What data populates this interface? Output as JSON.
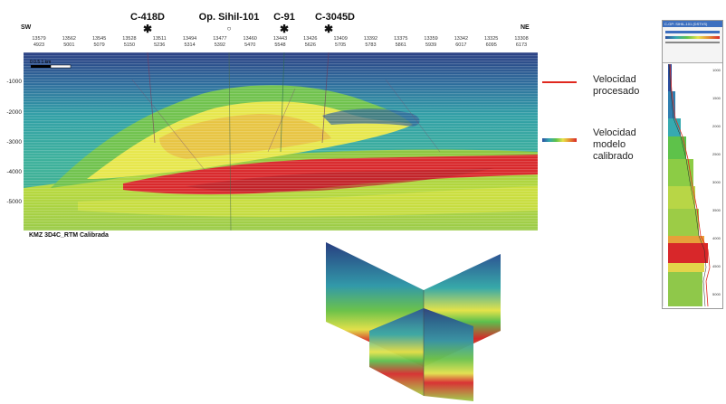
{
  "section": {
    "direction_left": "SW",
    "direction_right": "NE",
    "wells": [
      {
        "name": "C-418D",
        "marker": "✱"
      },
      {
        "name": "Op. Sihil-101",
        "marker": "○"
      },
      {
        "name": "C-91",
        "marker": "✱"
      },
      {
        "name": "C-3045D",
        "marker": "✱"
      }
    ],
    "traces_top": [
      "13579",
      "13562",
      "13545",
      "13528",
      "13511",
      "13494",
      "13477",
      "13460",
      "13443",
      "13426",
      "13409",
      "13392",
      "13375",
      "13359",
      "13342",
      "13325",
      "13308"
    ],
    "traces_bottom": [
      "4923",
      "5001",
      "5079",
      "5150",
      "5236",
      "5314",
      "5392",
      "5470",
      "5548",
      "5626",
      "5705",
      "5783",
      "5861",
      "5939",
      "6017",
      "6095",
      "6173"
    ],
    "depth_labels": [
      "-1000",
      "-2000",
      "-3000",
      "-4000",
      "-5000"
    ],
    "scale_label": "0   0.5   1 km",
    "caption": "KMZ 3D4C_RTM Calibrada"
  },
  "legend": {
    "processed_label": "Velocidad\nprocesado",
    "model_label": "Velocidad\nmodelo\ncalibrado",
    "processed_color": "#e0281e"
  },
  "log_panel": {
    "header_title": "C-GP: SIHIL-101 (DSTVS)",
    "depth_ticks": [
      "1000",
      "1500",
      "2000",
      "2500",
      "3000",
      "3500",
      "4000",
      "4500",
      "5000"
    ]
  }
}
